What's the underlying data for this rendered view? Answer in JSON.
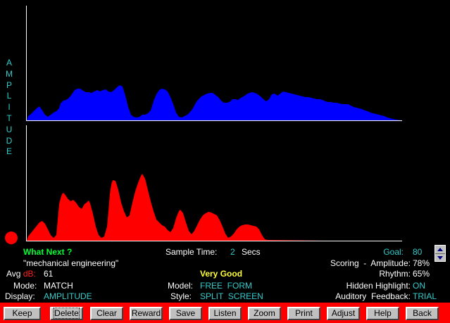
{
  "vertical_label": "AMPLITUDE",
  "status": {
    "what_next_label": "What Next ?",
    "phrase": "\"mechanical engineering\"",
    "avg_prefix": "Avg",
    "avg_unit": "dB:",
    "avg_value": "61",
    "mode_label": "Mode:",
    "mode_value": "MATCH",
    "display_label": "Display:",
    "display_value": "AMPLITUDE",
    "sample_time_label": "Sample Time:",
    "sample_time_value": "2",
    "sample_time_unit": "Secs",
    "rating": "Very Good",
    "model_label": "Model:",
    "model_value": "FREE  FORM",
    "style_label": "Style:",
    "style_value": "SPLIT  SCREEN",
    "goal_label": "Goal:",
    "goal_value": "80",
    "scoring_label": "Scoring  -  Amplitude:",
    "scoring_value": "78%",
    "rhythm_label": "Rhythm:",
    "rhythm_value": "65%",
    "hidden_label": "Hidden Highlight:",
    "hidden_value": "ON",
    "feedback_label": "Auditory  Feedback:",
    "feedback_value": "TRIAL"
  },
  "toolbar": {
    "keep": "Keep",
    "delete": "Delete",
    "clear": "Clear",
    "reward": "Reward",
    "save": "Save",
    "listen": "Listen",
    "zoom": "Zoom",
    "print": "Print",
    "adjust": "Adjust",
    "help": "Help",
    "back": "Back"
  },
  "colors": {
    "model_wave": "#0000ff",
    "user_wave": "#ff0000",
    "accent_text": "#33cccc",
    "toolbar_bg": "#ff0000"
  },
  "icons": {
    "spinner": "up-down-arrows-icon",
    "record": "record-dot-icon"
  }
}
